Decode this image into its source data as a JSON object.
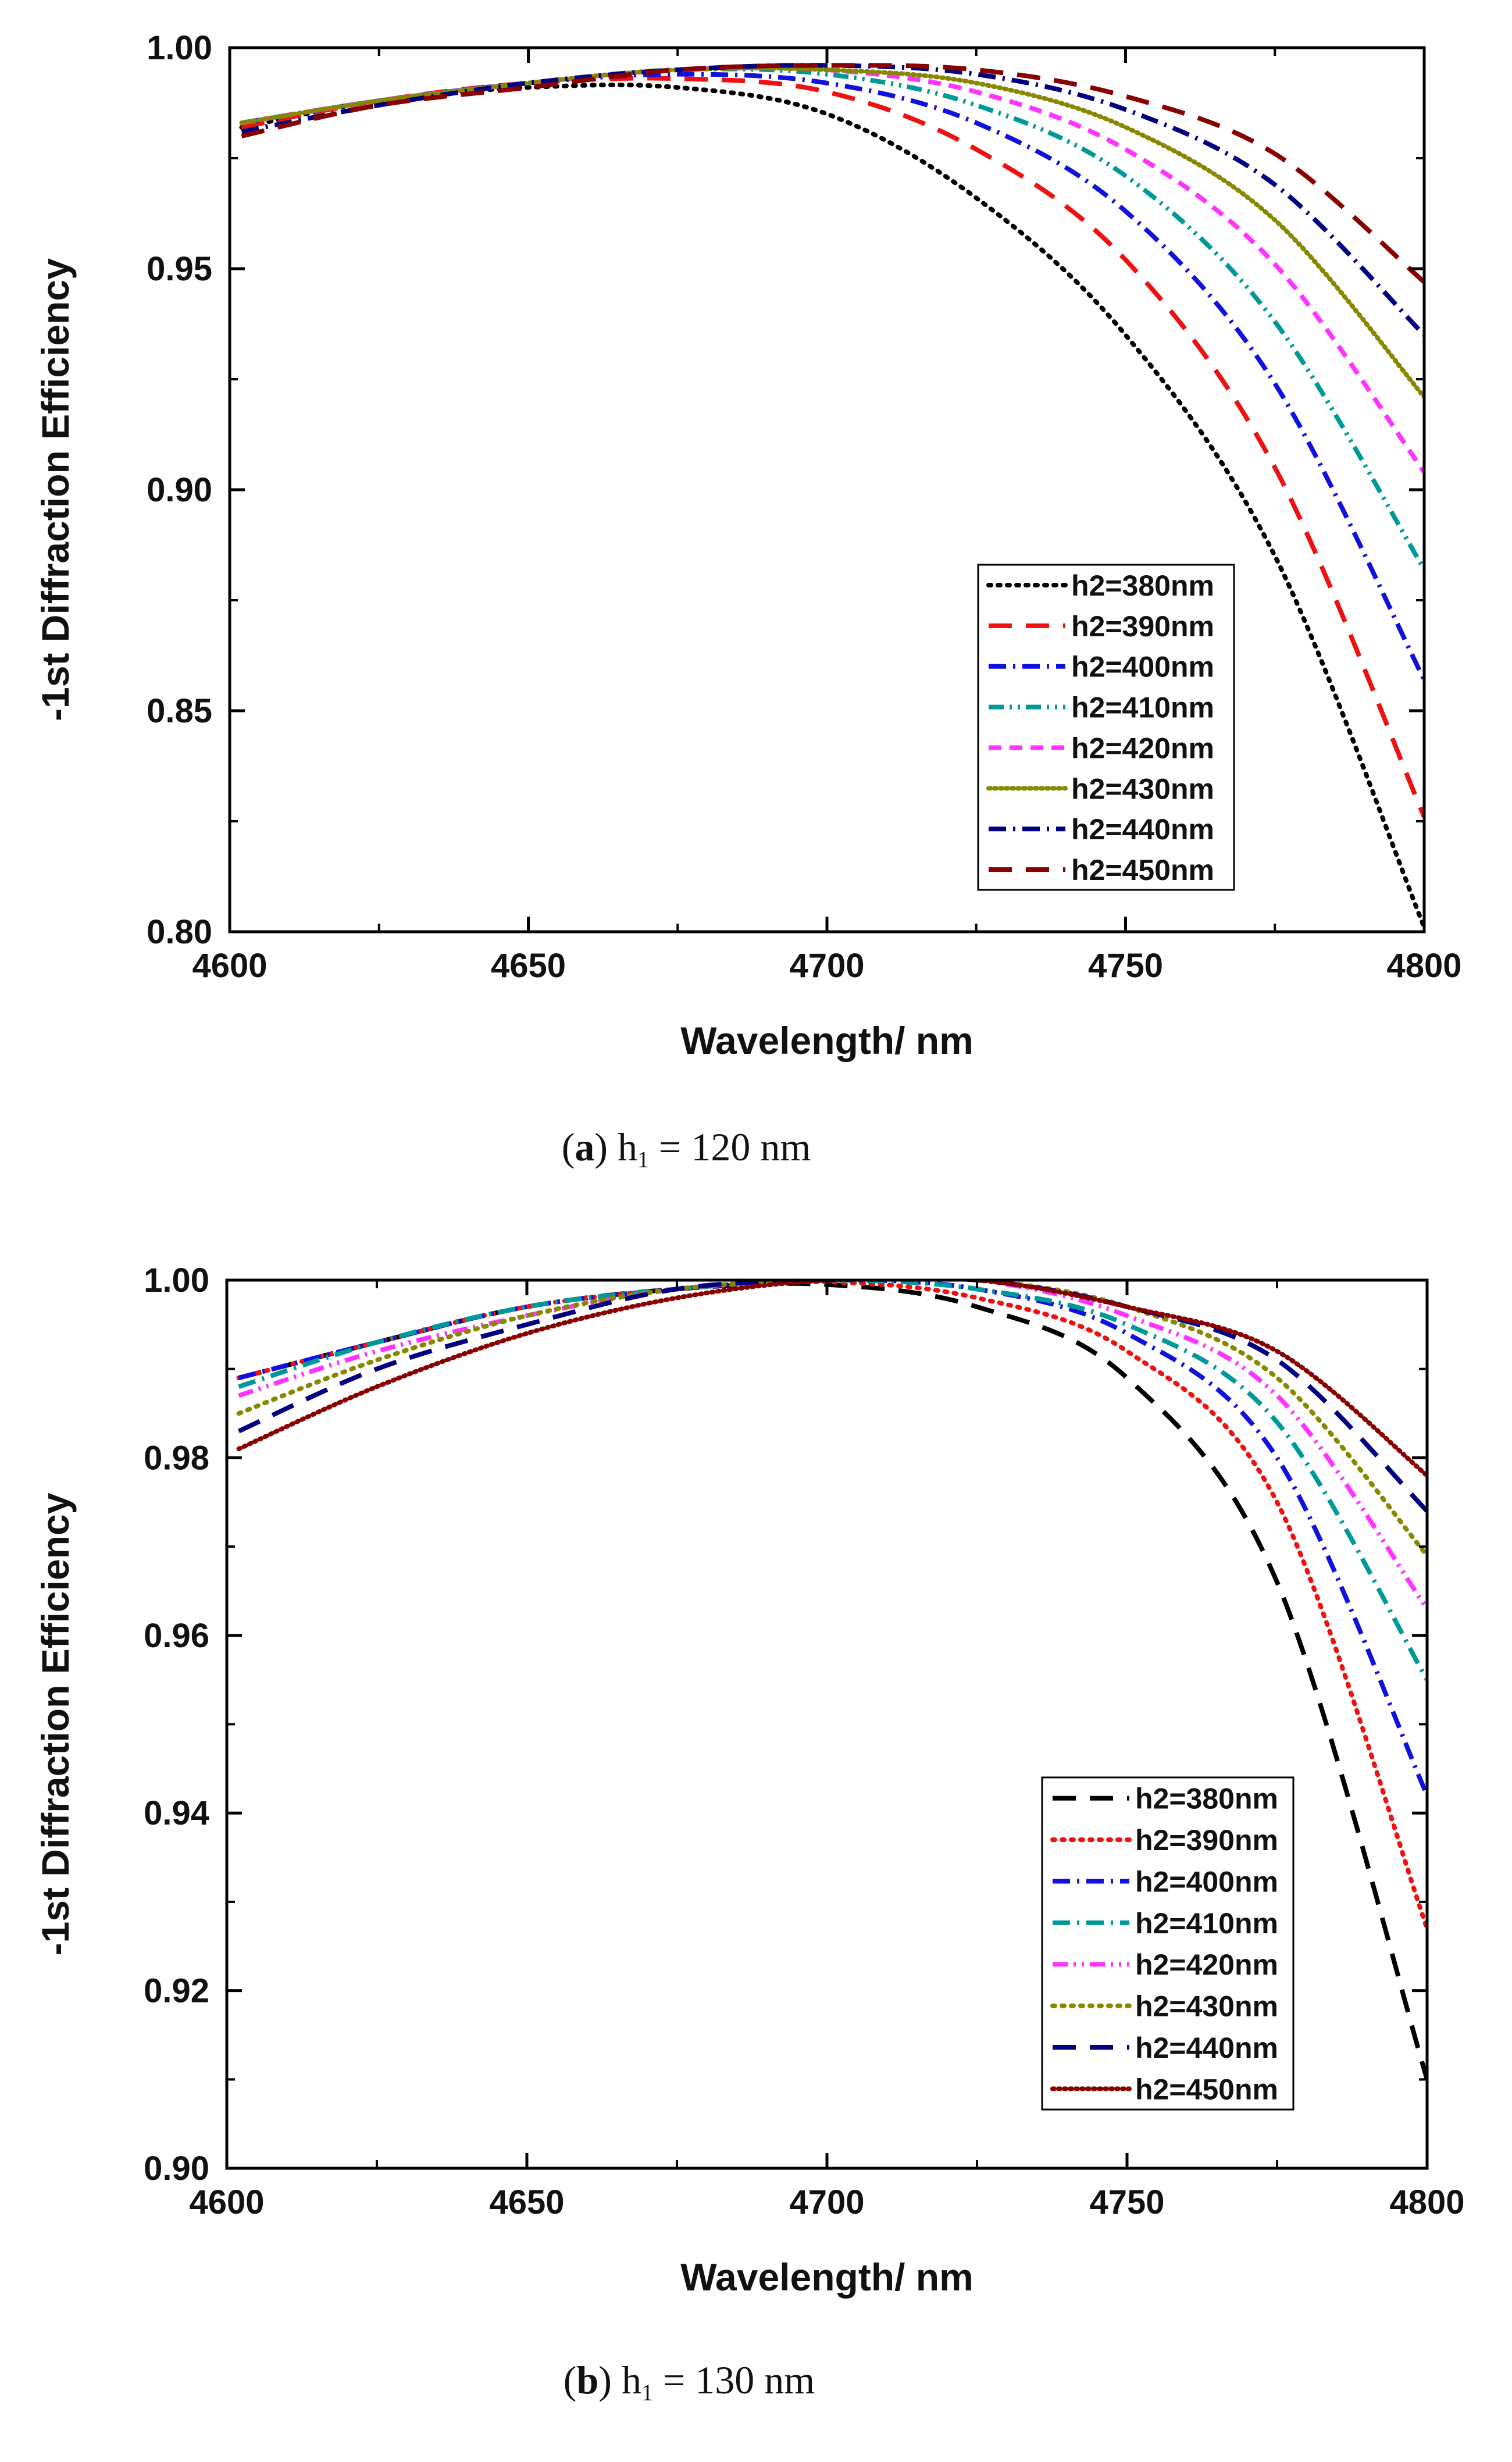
{
  "chart_data": [
    {
      "type": "line",
      "panel_label": "a",
      "caption": {
        "h": "h",
        "sub": "1",
        "rest": " = 120 nm"
      },
      "xlabel": "Wavelength/ nm",
      "ylabel": "-1st Diffraction Efficiency",
      "xlim": [
        4600,
        4800
      ],
      "ylim": [
        0.8,
        1.0
      ],
      "xticks": [
        "4600",
        "4650",
        "4700",
        "4750",
        "4800"
      ],
      "yticks": [
        "0.80",
        "0.85",
        "0.90",
        "0.95",
        "1.00"
      ],
      "legend_position": "lower-right",
      "x": [
        4602,
        4625,
        4650,
        4675,
        4700,
        4725,
        4750,
        4775,
        4800
      ],
      "series": [
        {
          "name": "h2=380nm",
          "color": "#000000",
          "dash": "dot",
          "values": [
            0.982,
            0.988,
            0.991,
            0.991,
            0.985,
            0.966,
            0.935,
            0.885,
            0.801
          ]
        },
        {
          "name": "h2=390nm",
          "color": "#ee1111",
          "dash": "dash",
          "values": [
            0.982,
            0.988,
            0.992,
            0.993,
            0.99,
            0.977,
            0.952,
            0.905,
            0.826
          ]
        },
        {
          "name": "h2=400nm",
          "color": "#1111dd",
          "dash": "dashdot",
          "values": [
            0.983,
            0.988,
            0.992,
            0.994,
            0.992,
            0.983,
            0.963,
            0.924,
            0.857
          ]
        },
        {
          "name": "h2=410nm",
          "color": "#009999",
          "dash": "dashdotdot",
          "values": [
            0.983,
            0.988,
            0.992,
            0.995,
            0.994,
            0.987,
            0.971,
            0.938,
            0.882
          ]
        },
        {
          "name": "h2=420nm",
          "color": "#ff33ff",
          "dash": "shortdash",
          "values": [
            0.983,
            0.988,
            0.992,
            0.995,
            0.995,
            0.99,
            0.977,
            0.951,
            0.904
          ]
        },
        {
          "name": "h2=430nm",
          "color": "#888800",
          "dash": "densedot",
          "values": [
            0.983,
            0.988,
            0.992,
            0.995,
            0.995,
            0.992,
            0.982,
            0.961,
            0.921
          ]
        },
        {
          "name": "h2=440nm",
          "color": "#000080",
          "dash": "dashdot",
          "values": [
            0.981,
            0.987,
            0.992,
            0.995,
            0.996,
            0.994,
            0.986,
            0.969,
            0.935
          ]
        },
        {
          "name": "h2=450nm",
          "color": "#880000",
          "dash": "dash",
          "values": [
            0.98,
            0.987,
            0.991,
            0.995,
            0.996,
            0.995,
            0.989,
            0.976,
            0.947
          ]
        }
      ]
    },
    {
      "type": "line",
      "panel_label": "b",
      "caption": {
        "h": "h",
        "sub": "1",
        "rest": " = 130 nm"
      },
      "xlabel": "Wavelength/ nm",
      "ylabel": "-1st Diffraction Efficiency",
      "xlim": [
        4600,
        4800
      ],
      "ylim": [
        0.9,
        1.0
      ],
      "xticks": [
        "4600",
        "4650",
        "4700",
        "4750",
        "4800"
      ],
      "yticks": [
        "0.90",
        "0.92",
        "0.94",
        "0.96",
        "0.98",
        "1.00"
      ],
      "legend_position": "lower-right",
      "x": [
        4602,
        4625,
        4650,
        4675,
        4700,
        4725,
        4750,
        4775,
        4800
      ],
      "series": [
        {
          "name": "h2=380nm",
          "color": "#000000",
          "dash": "dash",
          "values": [
            0.989,
            0.993,
            0.997,
            0.999,
            0.9995,
            0.997,
            0.989,
            0.966,
            0.91
          ]
        },
        {
          "name": "h2=390nm",
          "color": "#ee1111",
          "dash": "dot",
          "values": [
            0.989,
            0.993,
            0.997,
            0.999,
            0.9998,
            0.998,
            0.992,
            0.975,
            0.927
          ]
        },
        {
          "name": "h2=400nm",
          "color": "#1111dd",
          "dash": "dashdot",
          "values": [
            0.989,
            0.993,
            0.997,
            0.999,
            1.0,
            0.999,
            0.994,
            0.98,
            0.942
          ]
        },
        {
          "name": "h2=410nm",
          "color": "#009999",
          "dash": "dashdot",
          "values": [
            0.988,
            0.993,
            0.997,
            0.999,
            1.0,
            0.999,
            0.995,
            0.984,
            0.955
          ]
        },
        {
          "name": "h2=420nm",
          "color": "#ff33ff",
          "dash": "dashdotdot",
          "values": [
            0.987,
            0.992,
            0.996,
            0.999,
            1.0,
            1.0,
            0.996,
            0.987,
            0.963
          ]
        },
        {
          "name": "h2=430nm",
          "color": "#888800",
          "dash": "dot",
          "values": [
            0.985,
            0.991,
            0.996,
            0.999,
            1.0,
            1.0,
            0.997,
            0.989,
            0.969
          ]
        },
        {
          "name": "h2=440nm",
          "color": "#000080",
          "dash": "dash",
          "values": [
            0.983,
            0.99,
            0.995,
            0.999,
            1.0,
            1.0,
            0.997,
            0.991,
            0.974
          ]
        },
        {
          "name": "h2=450nm",
          "color": "#880000",
          "dash": "densedot",
          "values": [
            0.981,
            0.988,
            0.994,
            0.998,
            1.0,
            1.0,
            0.997,
            0.992,
            0.978
          ]
        }
      ]
    }
  ]
}
